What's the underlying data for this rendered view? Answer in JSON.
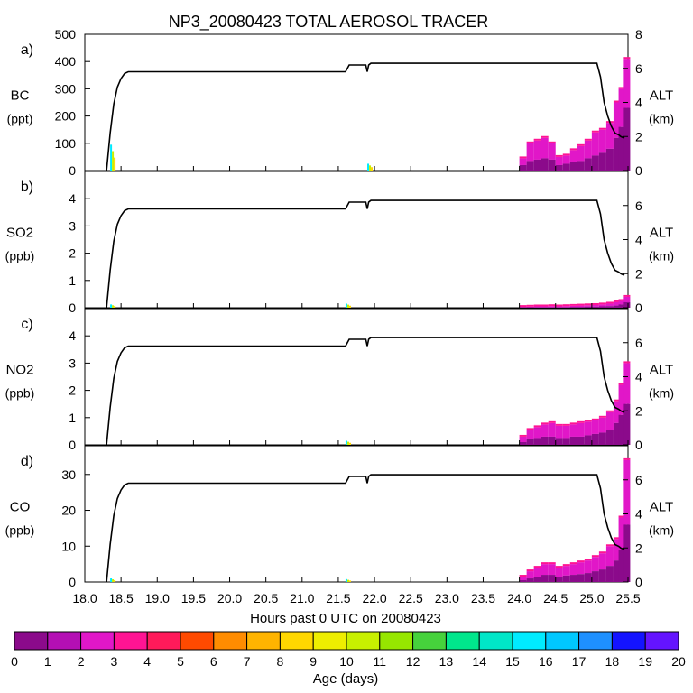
{
  "chart_data": {
    "type": "area",
    "title": "NP3_20080423 TOTAL AEROSOL TRACER",
    "xlabel": "Hours past 0 UTC on 20080423",
    "xlim": [
      18.0,
      25.5
    ],
    "xticks": [
      "18.0",
      "18.5",
      "19.0",
      "19.5",
      "20.0",
      "20.5",
      "21.0",
      "21.5",
      "22.0",
      "22.5",
      "23.0",
      "23.5",
      "24.0",
      "24.5",
      "25.0",
      "25.5"
    ],
    "altitude_axis": {
      "label": "ALT",
      "unit": "(km)",
      "ylim": [
        0,
        8
      ],
      "profile": {
        "x": [
          18.3,
          18.35,
          18.4,
          18.45,
          18.5,
          18.55,
          18.6,
          18.65,
          18.7,
          21.6,
          21.65,
          21.7,
          21.88,
          21.9,
          21.92,
          21.95,
          25.07,
          25.12,
          25.17,
          25.22,
          25.27,
          25.32,
          25.37,
          25.4,
          25.45
        ],
        "y": [
          0.0,
          2.2,
          3.9,
          4.9,
          5.4,
          5.7,
          5.8,
          5.8,
          5.8,
          5.8,
          6.2,
          6.2,
          6.2,
          5.8,
          6.2,
          6.3,
          6.3,
          5.5,
          4.0,
          3.2,
          2.6,
          2.2,
          2.1,
          2.0,
          1.9
        ]
      }
    },
    "panels": [
      {
        "letter": "a)",
        "species": "BC",
        "unit": "(ppt)",
        "ylim": [
          0,
          500
        ],
        "yticks": [
          "0",
          "100",
          "200",
          "300",
          "400",
          "500"
        ],
        "x": [
          24.05,
          24.15,
          24.25,
          24.35,
          24.45,
          24.55,
          24.65,
          24.75,
          24.85,
          24.95,
          25.05,
          25.15,
          25.25,
          25.35,
          25.42,
          25.48
        ],
        "total": [
          45,
          100,
          110,
          120,
          100,
          50,
          55,
          75,
          90,
          110,
          140,
          150,
          175,
          250,
          300,
          410
        ],
        "young": [
          20,
          35,
          40,
          45,
          40,
          20,
          25,
          30,
          35,
          45,
          55,
          65,
          80,
          120,
          160,
          230
        ],
        "early_spikes": [
          {
            "x": 18.35,
            "value": 95
          },
          {
            "x": 21.9,
            "value": 25
          }
        ]
      },
      {
        "letter": "b)",
        "species": "SO2",
        "unit": "(ppb)",
        "ylim": [
          0,
          5
        ],
        "yticks": [
          "0",
          "1",
          "2",
          "3",
          "4"
        ],
        "x": [
          24.05,
          24.15,
          24.25,
          24.35,
          24.45,
          24.55,
          24.65,
          24.75,
          24.85,
          24.95,
          25.05,
          25.15,
          25.25,
          25.35,
          25.42,
          25.48
        ],
        "total": [
          0.03,
          0.04,
          0.05,
          0.05,
          0.06,
          0.05,
          0.06,
          0.07,
          0.08,
          0.09,
          0.1,
          0.12,
          0.15,
          0.2,
          0.25,
          0.4
        ],
        "young": [
          0.01,
          0.01,
          0.02,
          0.02,
          0.02,
          0.02,
          0.02,
          0.03,
          0.03,
          0.04,
          0.04,
          0.05,
          0.06,
          0.08,
          0.12,
          0.2
        ],
        "early_spikes": [
          {
            "x": 18.35,
            "value": 0.12
          },
          {
            "x": 21.6,
            "value": 0.15
          }
        ]
      },
      {
        "letter": "c)",
        "species": "NO2",
        "unit": "(ppb)",
        "ylim": [
          0,
          5
        ],
        "yticks": [
          "0",
          "1",
          "2",
          "3",
          "4"
        ],
        "x": [
          24.05,
          24.15,
          24.25,
          24.35,
          24.45,
          24.55,
          24.65,
          24.75,
          24.85,
          24.95,
          25.05,
          25.15,
          25.25,
          25.35,
          25.42,
          25.48
        ],
        "total": [
          0.3,
          0.55,
          0.65,
          0.75,
          0.8,
          0.7,
          0.7,
          0.75,
          0.8,
          0.85,
          0.9,
          1.0,
          1.2,
          1.6,
          2.2,
          3.0
        ],
        "young": [
          0.1,
          0.2,
          0.25,
          0.3,
          0.3,
          0.25,
          0.25,
          0.3,
          0.3,
          0.35,
          0.4,
          0.45,
          0.55,
          0.8,
          1.1,
          1.5
        ],
        "early_spikes": [
          {
            "x": 21.6,
            "value": 0.15
          }
        ]
      },
      {
        "letter": "d)",
        "species": "CO",
        "unit": "(ppb)",
        "ylim": [
          0,
          38
        ],
        "yticks": [
          "0",
          "10",
          "20",
          "30"
        ],
        "x": [
          24.05,
          24.15,
          24.25,
          24.35,
          24.45,
          24.55,
          24.65,
          24.75,
          24.85,
          24.95,
          25.05,
          25.15,
          25.25,
          25.35,
          25.42,
          25.48
        ],
        "total": [
          1.5,
          3,
          4,
          5,
          5,
          4,
          4.5,
          5,
          5.5,
          6,
          7,
          8,
          10,
          12,
          18,
          34
        ],
        "young": [
          0.5,
          1,
          1.5,
          2,
          2,
          1.5,
          1.8,
          2,
          2.2,
          2.5,
          3,
          3.5,
          4.5,
          6,
          9,
          16
        ],
        "early_spikes": [
          {
            "x": 18.35,
            "value": 1.0
          },
          {
            "x": 21.6,
            "value": 0.8
          }
        ]
      }
    ],
    "colorbar": {
      "label": "Age (days)",
      "ticks": [
        "0",
        "1",
        "2",
        "3",
        "4",
        "5",
        "6",
        "7",
        "8",
        "9",
        "10",
        "11",
        "12",
        "13",
        "14",
        "15",
        "16",
        "17",
        "18",
        "19",
        "20"
      ],
      "colors": [
        "#8b0a8b",
        "#b40fb4",
        "#e117c8",
        "#ff1493",
        "#ff1a5a",
        "#ff4a00",
        "#ff8c00",
        "#ffb400",
        "#ffd700",
        "#eeee00",
        "#c8f000",
        "#96e600",
        "#46d23c",
        "#00e68c",
        "#00e6c8",
        "#00ebff",
        "#00c8ff",
        "#1e90ff",
        "#1414ff",
        "#6414ff"
      ]
    }
  }
}
